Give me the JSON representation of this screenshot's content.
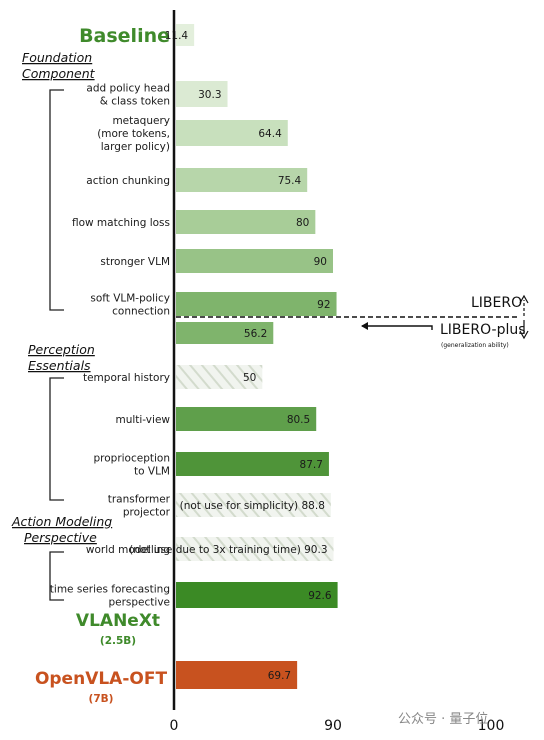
{
  "chart_data": {
    "type": "bar",
    "orientation": "horizontal",
    "xlim": [
      0,
      100
    ],
    "ticks": [
      "0",
      "90",
      "100"
    ],
    "headers": {
      "baseline": "Baseline",
      "vlanext": "VLANeXt",
      "vlanext_sub": "(2.5B)",
      "openvla": "OpenVLA-OFT",
      "openvla_sub": "(7B)"
    },
    "sections": [
      {
        "line1": "Foundation",
        "line2": "Component"
      },
      {
        "line1": "Perception",
        "line2": "Essentials"
      },
      {
        "line1": "Action Modeling",
        "line2": "Perspective"
      }
    ],
    "bars": [
      {
        "label": [],
        "value": 11.4,
        "display": "11.4",
        "style": "baseline"
      },
      {
        "label": [
          "add policy head",
          "& class token"
        ],
        "value": 30.3,
        "display": "30.3",
        "style": "light1"
      },
      {
        "label": [
          "metaquery",
          "(more tokens,",
          "larger policy)"
        ],
        "value": 64.4,
        "display": "64.4",
        "style": "light2"
      },
      {
        "label": [
          "action chunking"
        ],
        "value": 75.4,
        "display": "75.4",
        "style": "light3"
      },
      {
        "label": [
          "flow matching loss"
        ],
        "value": 80,
        "display": "80",
        "style": "light4"
      },
      {
        "label": [
          "stronger VLM"
        ],
        "value": 90,
        "display": "90",
        "style": "light5"
      },
      {
        "label": [
          "soft VLM-policy",
          "connection"
        ],
        "value": 92,
        "display": "92",
        "style": "mid1"
      },
      {
        "label": [],
        "value": 56.2,
        "display": "56.2",
        "style": "mid1"
      },
      {
        "label": [
          "temporal history"
        ],
        "value": 50,
        "display": "50",
        "style": "hatch"
      },
      {
        "label": [
          "multi-view"
        ],
        "value": 80.5,
        "display": "80.5",
        "style": "mid2"
      },
      {
        "label": [
          "proprioception",
          "to VLM"
        ],
        "value": 87.7,
        "display": "87.7",
        "style": "mid3"
      },
      {
        "label": [
          "transformer",
          "projector"
        ],
        "value": 88.8,
        "display": "(not use for simplicity)  88.8",
        "style": "hatch"
      },
      {
        "label": [
          "world modelling"
        ],
        "value": 90.3,
        "display": "(not use due to 3x training time)  90.3",
        "style": "hatch"
      },
      {
        "label": [
          "time series forecasting",
          "perspective"
        ],
        "value": 92.6,
        "display": "92.6",
        "style": "dark"
      },
      {
        "label": [],
        "value": 69.7,
        "display": "69.7",
        "style": "orange"
      }
    ],
    "annotations": {
      "libero": "LIBERO",
      "libero_plus": "LIBERO-plus",
      "libero_plus_sub": "(generalization ability)"
    },
    "colors": {
      "baseline": "#e3efdc",
      "light1": "#dbead3",
      "light2": "#c8e0bd",
      "light3": "#b7d6aa",
      "light4": "#a8cd98",
      "light5": "#98c387",
      "mid1": "#7fb46c",
      "mid2": "#5f9f4b",
      "mid3": "#4f9439",
      "dark": "#3b8a25",
      "orange": "#c8521f",
      "hatch": "#f0f3ee",
      "hatch_line": "#d4dccf",
      "green_text": "#3f8a2b",
      "orange_text": "#c8521f"
    }
  },
  "watermark": "公众号 · 量子位"
}
